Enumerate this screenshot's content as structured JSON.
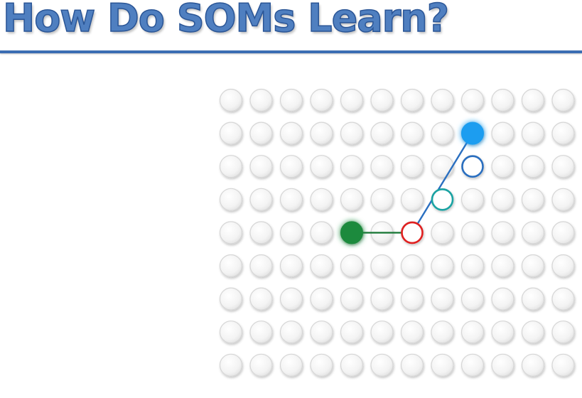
{
  "slide": {
    "title": "How Do SOMs Learn?"
  },
  "diagram": {
    "grid": {
      "rows": 9,
      "cols": 12
    },
    "colors": {
      "node_fill": "#f4f4f4",
      "node_stroke": "#d6d6d6",
      "input": "#1e8a3c",
      "bmu": "#e02020",
      "neighbor_near": "#1aa3a3",
      "neighbor_mid": "#2a6fc0",
      "neighbor_far": "#1a9df0",
      "title": "#4f7fc0",
      "rule": "#3b6db3"
    },
    "highlights": [
      {
        "id": "input-node",
        "row": 4,
        "col": 4,
        "style": "filled-glow",
        "color": "#1e8a3c"
      },
      {
        "id": "bmu-node",
        "row": 4,
        "col": 6,
        "style": "ring",
        "color": "#e02020"
      },
      {
        "id": "neighbor-node-1",
        "row": 3,
        "col": 7,
        "style": "ring",
        "color": "#1aa3a3"
      },
      {
        "id": "neighbor-node-2",
        "row": 2,
        "col": 8,
        "style": "ring",
        "color": "#2a6fc0"
      },
      {
        "id": "neighbor-node-3",
        "row": 1,
        "col": 8,
        "style": "filled-glow",
        "color": "#1a9df0"
      }
    ],
    "arrows": [
      {
        "id": "arrow-bmu-to-input",
        "from": "bmu-node",
        "to": "input-node",
        "color": "#1e7a3a"
      },
      {
        "id": "line-bmu-to-neighbor",
        "from": "bmu-node",
        "to": "neighbor-node-3",
        "color": "#2a6fc0"
      }
    ]
  }
}
